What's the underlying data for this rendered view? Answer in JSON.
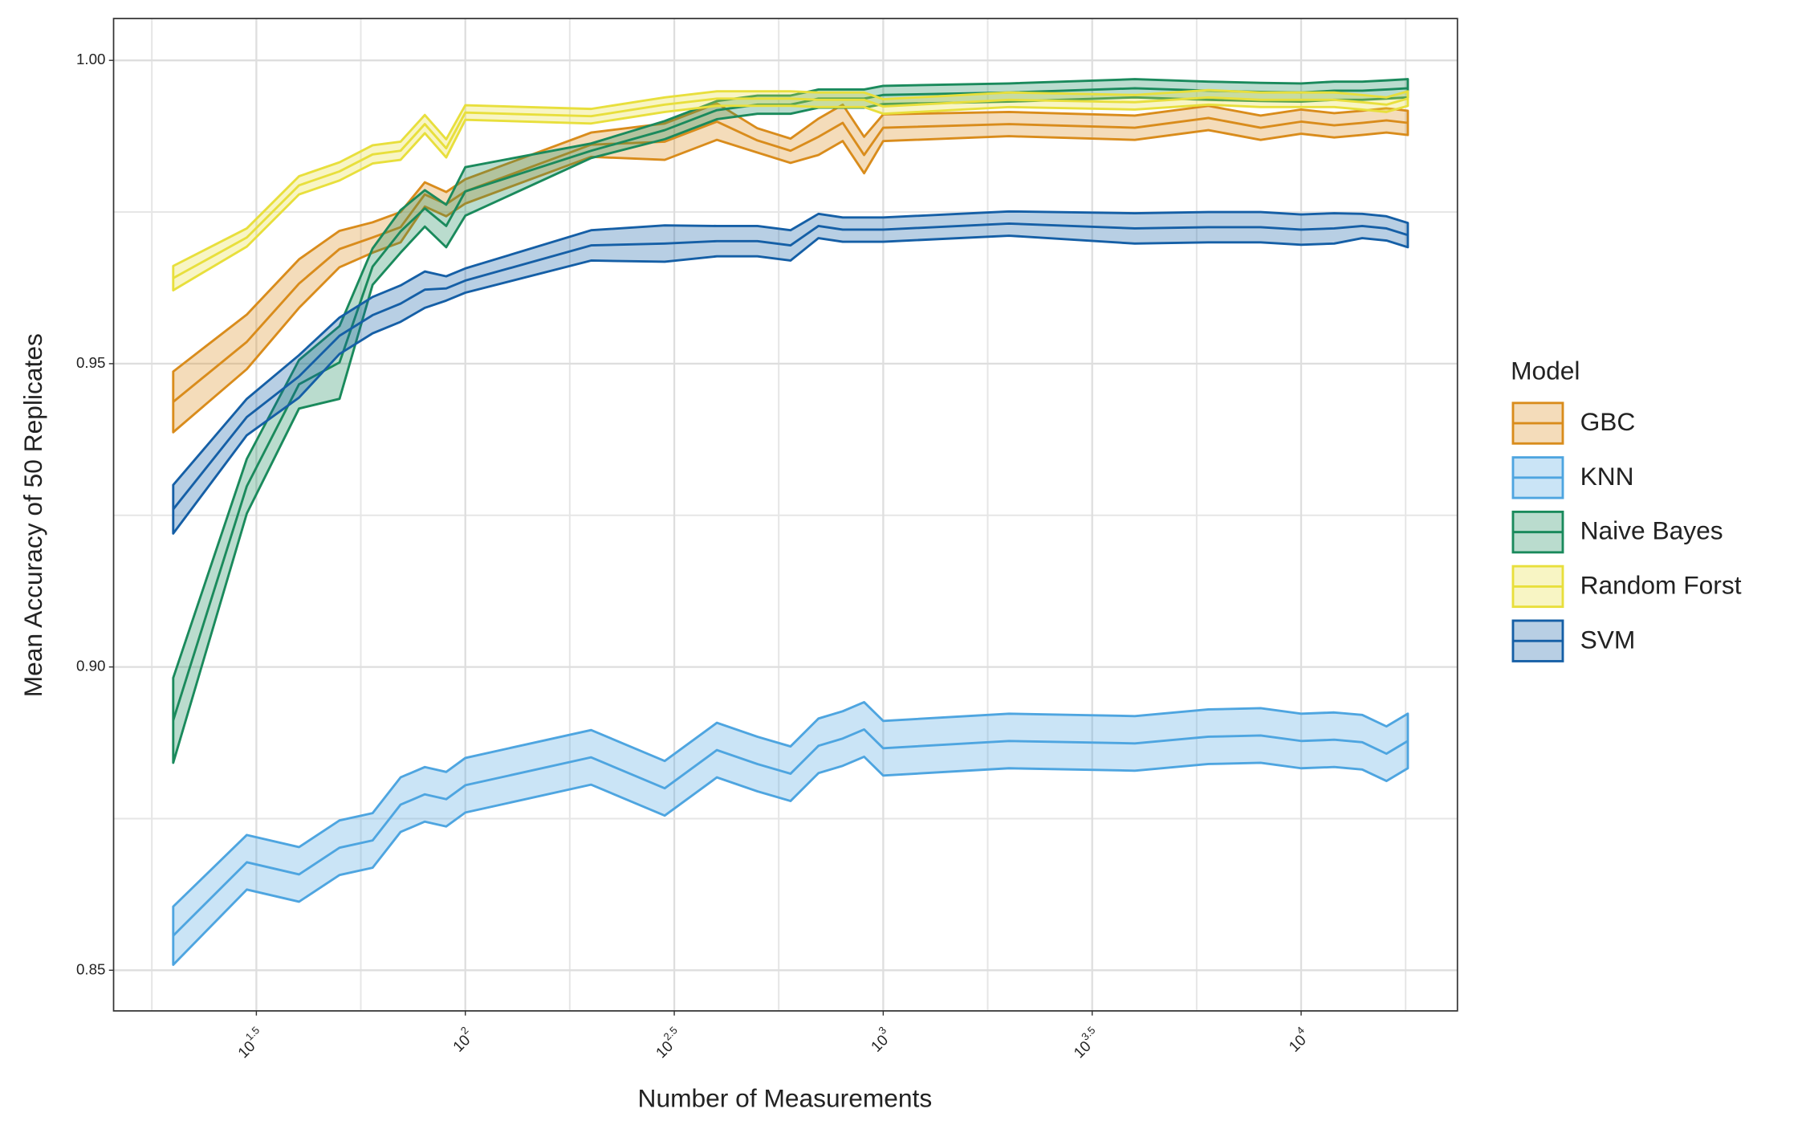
{
  "chart_data": {
    "type": "line",
    "x_label": "Number of Measurements",
    "y_label": "Mean Accuracy of 50 Replicates",
    "legend_title": "Model",
    "legend_position": "right",
    "x_log": true,
    "grid": true,
    "xlim": [
      14.4,
      23660
    ],
    "ylim": [
      0.8433,
      1.0069
    ],
    "xticks": [
      {
        "value": 31.623,
        "label": "10^1.5"
      },
      {
        "value": 100,
        "label": "10^2"
      },
      {
        "value": 316.23,
        "label": "10^2.5"
      },
      {
        "value": 1000,
        "label": "10^3"
      },
      {
        "value": 3162.3,
        "label": "10^3.5"
      },
      {
        "value": 10000,
        "label": "10^4"
      }
    ],
    "x_minor_ticks": [
      17.78,
      56.23,
      177.8,
      562.3,
      1778.3,
      5623.4,
      17782.8
    ],
    "yticks": [
      0.85,
      {
        "value": 0.9,
        "label": "0.90"
      },
      0.95,
      {
        "value": 1.0,
        "label": "1.00"
      }
    ],
    "y_minor_ticks": [
      0.875,
      0.925,
      0.975
    ],
    "x": [
      20,
      30,
      40,
      50,
      60,
      70,
      80,
      90,
      100,
      200,
      300,
      400,
      500,
      600,
      700,
      800,
      900,
      1000,
      2000,
      4000,
      6000,
      8000,
      10000,
      12000,
      14000,
      16000,
      18000
    ],
    "series": [
      {
        "name": "GBC",
        "color": "#d98c1c",
        "values": [
          0.9437,
          0.9536,
          0.9632,
          0.9689,
          0.9708,
          0.9725,
          0.9779,
          0.9763,
          0.9784,
          0.9861,
          0.9866,
          0.9899,
          0.9868,
          0.9851,
          0.9874,
          0.9897,
          0.9844,
          0.9889,
          0.9895,
          0.9889,
          0.9905,
          0.9889,
          0.9899,
          0.9893,
          0.9897,
          0.9901,
          0.9897
        ],
        "errors": [
          0.005,
          0.0045,
          0.004,
          0.003,
          0.0025,
          0.0025,
          0.002,
          0.002,
          0.002,
          0.002,
          0.003,
          0.003,
          0.002,
          0.002,
          0.003,
          0.003,
          0.003,
          0.0022,
          0.002,
          0.002,
          0.002,
          0.002,
          0.002,
          0.002,
          0.002,
          0.002,
          0.002
        ]
      },
      {
        "name": "KNN",
        "color": "#4ea5e0",
        "values": [
          0.8557,
          0.8678,
          0.8658,
          0.8702,
          0.8714,
          0.8773,
          0.879,
          0.8782,
          0.8805,
          0.8851,
          0.88,
          0.8863,
          0.884,
          0.8824,
          0.887,
          0.8882,
          0.8897,
          0.8866,
          0.8878,
          0.8874,
          0.8885,
          0.8887,
          0.8878,
          0.888,
          0.8876,
          0.8857,
          0.8878
        ],
        "errors": [
          0.0048,
          0.0045,
          0.0045,
          0.0045,
          0.0045,
          0.0045,
          0.0045,
          0.0045,
          0.0045,
          0.0045,
          0.0045,
          0.0045,
          0.0045,
          0.0045,
          0.0045,
          0.0045,
          0.0045,
          0.0045,
          0.0045,
          0.0045,
          0.0045,
          0.0045,
          0.0045,
          0.0045,
          0.0045,
          0.0045,
          0.0045
        ]
      },
      {
        "name": "Naive Bayes",
        "color": "#1a8a5c",
        "values": [
          0.8912,
          0.9298,
          0.9466,
          0.9502,
          0.966,
          0.9718,
          0.9756,
          0.9727,
          0.9784,
          0.9851,
          0.9885,
          0.9918,
          0.9927,
          0.9927,
          0.9937,
          0.9937,
          0.9937,
          0.9943,
          0.9947,
          0.9954,
          0.995,
          0.9948,
          0.9947,
          0.995,
          0.995,
          0.9952,
          0.9954
        ],
        "errors": [
          0.007,
          0.0045,
          0.004,
          0.006,
          0.003,
          0.0035,
          0.003,
          0.0035,
          0.004,
          0.0012,
          0.0015,
          0.0015,
          0.0015,
          0.0015,
          0.0015,
          0.0015,
          0.0015,
          0.0015,
          0.0015,
          0.0015,
          0.0015,
          0.0015,
          0.0015,
          0.0015,
          0.0015,
          0.0015,
          0.0015
        ]
      },
      {
        "name": "Random Forst",
        "color": "#e8df3c",
        "values": [
          0.9641,
          0.9708,
          0.9794,
          0.9817,
          0.9845,
          0.9851,
          0.9895,
          0.9855,
          0.9914,
          0.9908,
          0.9927,
          0.9937,
          0.9937,
          0.9937,
          0.9935,
          0.9935,
          0.9935,
          0.9924,
          0.9935,
          0.9931,
          0.9939,
          0.9935,
          0.9935,
          0.9935,
          0.9931,
          0.9927,
          0.9937
        ],
        "errors": [
          0.002,
          0.0015,
          0.0015,
          0.0015,
          0.0015,
          0.0015,
          0.0015,
          0.0015,
          0.0012,
          0.0012,
          0.0012,
          0.0012,
          0.0012,
          0.0012,
          0.0012,
          0.0012,
          0.0012,
          0.0012,
          0.0012,
          0.0012,
          0.0012,
          0.0012,
          0.0012,
          0.0012,
          0.0012,
          0.0012,
          0.0012
        ]
      },
      {
        "name": "SVM",
        "color": "#155fa6",
        "values": [
          0.926,
          0.9412,
          0.9479,
          0.9546,
          0.958,
          0.9599,
          0.9622,
          0.9624,
          0.9637,
          0.9695,
          0.9698,
          0.9702,
          0.9702,
          0.9695,
          0.9727,
          0.9721,
          0.9721,
          0.9721,
          0.9731,
          0.9723,
          0.9725,
          0.9725,
          0.9721,
          0.9723,
          0.9727,
          0.9723,
          0.9712
        ],
        "errors": [
          0.004,
          0.003,
          0.0035,
          0.003,
          0.003,
          0.003,
          0.003,
          0.002,
          0.002,
          0.0025,
          0.003,
          0.0025,
          0.0025,
          0.0025,
          0.002,
          0.002,
          0.002,
          0.002,
          0.002,
          0.0025,
          0.0025,
          0.0025,
          0.0025,
          0.0025,
          0.002,
          0.002,
          0.002
        ]
      }
    ]
  }
}
